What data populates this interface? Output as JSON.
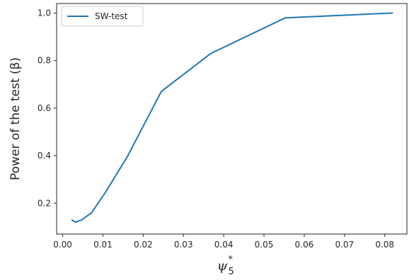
{
  "chart_data": {
    "type": "line",
    "ylabel": "Power of the test (β)",
    "xlabel_symbol": "ψ",
    "xlabel_subscript": "5",
    "xlabel_superscript": "*",
    "xlim": [
      -0.0015,
      0.0855
    ],
    "ylim": [
      0.07,
      1.04
    ],
    "xticks": [
      0.0,
      0.01,
      0.02,
      0.03,
      0.04,
      0.05,
      0.06,
      0.07,
      0.08
    ],
    "xtick_labels": [
      "0.00",
      "0.01",
      "0.02",
      "0.03",
      "0.04",
      "0.05",
      "0.06",
      "0.07",
      "0.08"
    ],
    "yticks": [
      0.2,
      0.4,
      0.6,
      0.8,
      1.0
    ],
    "ytick_labels": [
      "0.2",
      "0.4",
      "0.6",
      "0.8",
      "1.0"
    ],
    "grid": false,
    "legend_position": "top-left",
    "series": [
      {
        "name": "SW-test",
        "color": "#1f77b4",
        "x": [
          0.0022,
          0.0032,
          0.0048,
          0.0072,
          0.0108,
          0.0162,
          0.0245,
          0.0368,
          0.0553,
          0.082
        ],
        "y": [
          0.13,
          0.12,
          0.13,
          0.16,
          0.25,
          0.4,
          0.67,
          0.83,
          0.98,
          1.0
        ]
      }
    ]
  }
}
